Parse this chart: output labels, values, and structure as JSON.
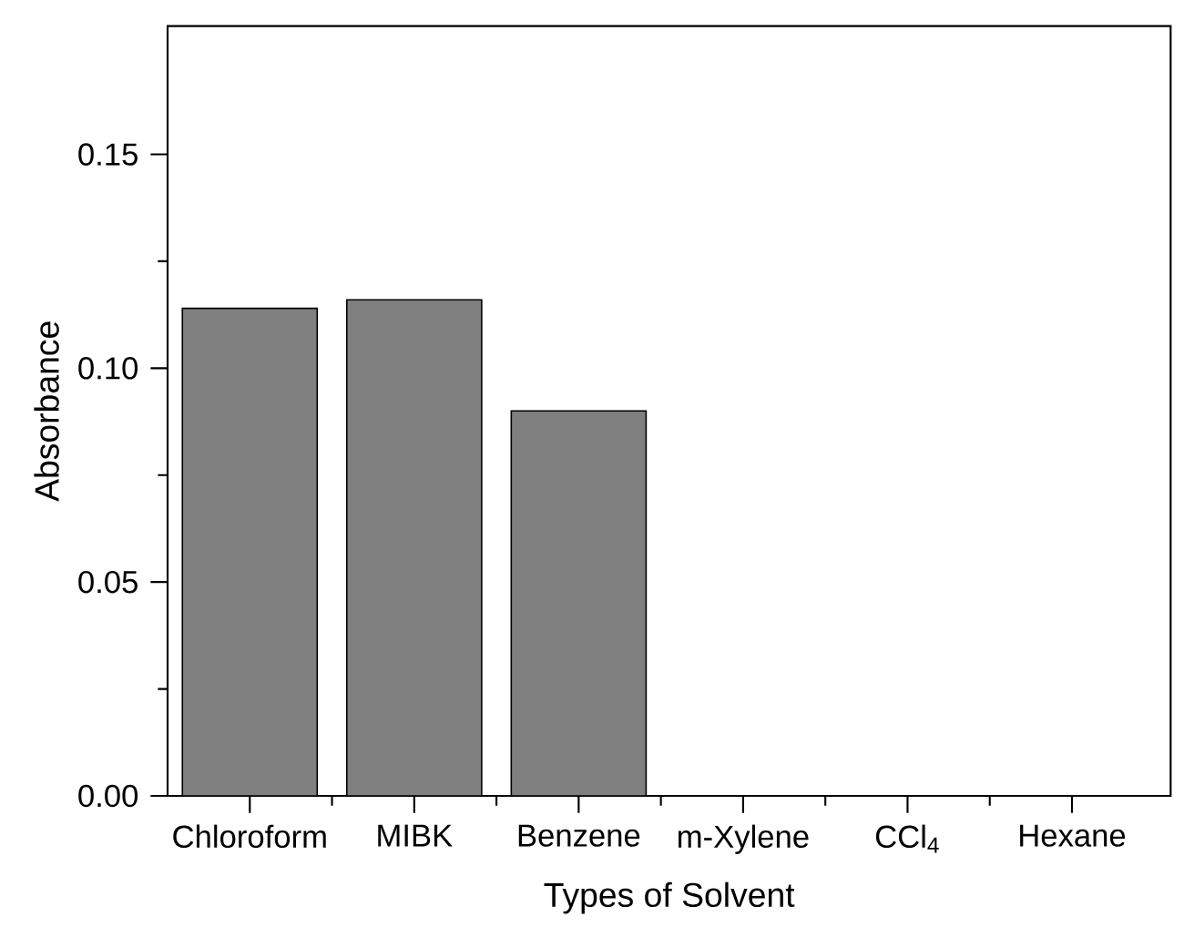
{
  "chart_data": {
    "type": "bar",
    "xlabel": "Types of Solvent",
    "ylabel": "Absorbance",
    "categories": [
      "Chloroform",
      "MIBK",
      "Benzene",
      "m-Xylene",
      "CCl$_{4}$",
      "Hexane"
    ],
    "values": [
      0.114,
      0.116,
      0.09,
      null,
      null,
      null
    ],
    "color": "#808080",
    "ylim": [
      0,
      0.18
    ],
    "yticks": [
      {
        "value": 0,
        "label": "0.00"
      },
      {
        "value": 0.05,
        "label": "0.05"
      },
      {
        "value": 0.1,
        "label": "0.10"
      },
      {
        "value": 0.15,
        "label": "0.15"
      }
    ],
    "grid": false
  }
}
